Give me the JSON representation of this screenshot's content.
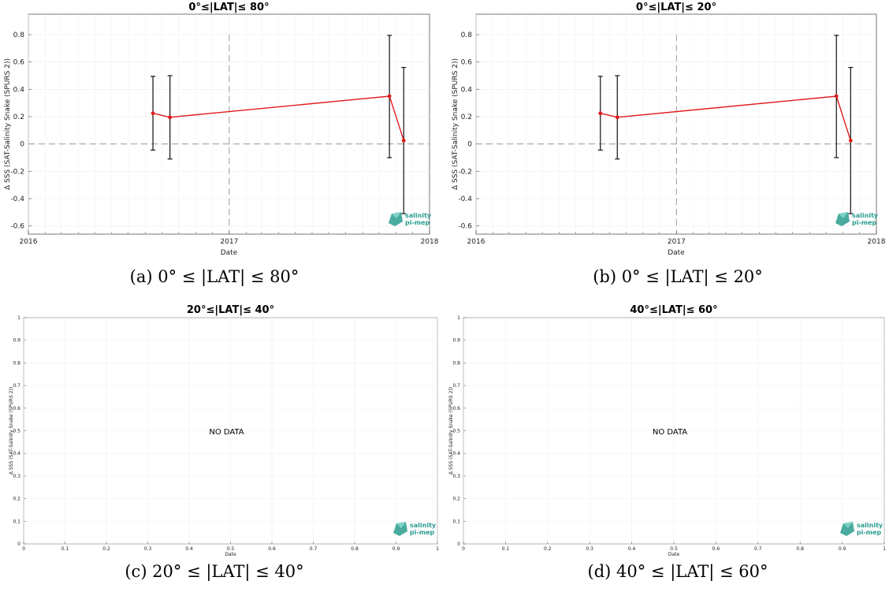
{
  "chart_data": [
    {
      "type": "line",
      "title": "0°≤|LAT|≤ 80°",
      "xlabel": "Date",
      "ylabel": "Δ SSS (SAT-Salinity Snake (SPURS 2))",
      "x_ticks": [
        "2016",
        "2017",
        "2018"
      ],
      "xlim": [
        "2016-01-01",
        "2018-01-01"
      ],
      "ylim": [
        -0.66,
        0.95
      ],
      "y_ticks": [
        -0.6,
        -0.4,
        -0.2,
        0,
        0.2,
        0.4,
        0.6,
        0.8
      ],
      "y_tick_labels": [
        "-0.6",
        "-0.4",
        "-0.2",
        "0",
        "0.2",
        "0.4",
        "0.6",
        "0.8"
      ],
      "vline": "2017-01-01",
      "hline": 0,
      "color": "#e31a1c",
      "series": [
        {
          "points": [
            {
              "x": "2016-08-15",
              "y": 0.225,
              "err_low": -0.045,
              "err_high": 0.495
            },
            {
              "x": "2016-09-15",
              "y": 0.195,
              "err_low": -0.11,
              "err_high": 0.5
            },
            {
              "x": "2017-10-20",
              "y": 0.35,
              "err_low": -0.1,
              "err_high": 0.795
            },
            {
              "x": "2017-11-15",
              "y": 0.025,
              "err_low": -0.51,
              "err_high": 0.56
            }
          ]
        }
      ],
      "caption": "(a) 0° ≤ |LAT| ≤ 80°"
    },
    {
      "type": "line",
      "title": "0°≤|LAT|≤ 20°",
      "xlabel": "Date",
      "ylabel": "Δ SSS (SAT-Salinity Snake (SPURS 2))",
      "x_ticks": [
        "2016",
        "2017",
        "2018"
      ],
      "xlim": [
        "2016-01-01",
        "2018-01-01"
      ],
      "ylim": [
        -0.66,
        0.95
      ],
      "y_ticks": [
        -0.6,
        -0.4,
        -0.2,
        0,
        0.2,
        0.4,
        0.6,
        0.8
      ],
      "y_tick_labels": [
        "-0.6",
        "-0.4",
        "-0.2",
        "0",
        "0.2",
        "0.4",
        "0.6",
        "0.8"
      ],
      "vline": "2017-01-01",
      "hline": 0,
      "color": "#e31a1c",
      "series": [
        {
          "points": [
            {
              "x": "2016-08-15",
              "y": 0.225,
              "err_low": -0.045,
              "err_high": 0.495
            },
            {
              "x": "2016-09-15",
              "y": 0.195,
              "err_low": -0.11,
              "err_high": 0.5
            },
            {
              "x": "2017-10-20",
              "y": 0.35,
              "err_low": -0.1,
              "err_high": 0.795
            },
            {
              "x": "2017-11-15",
              "y": 0.025,
              "err_low": -0.51,
              "err_high": 0.56
            }
          ]
        }
      ],
      "caption": "(b) 0° ≤ |LAT| ≤ 20°"
    },
    {
      "type": "line",
      "title": "20°≤|LAT|≤ 40°",
      "xlabel": "Date",
      "ylabel": "Δ SSS (SAT-Salinity Snake (SPURS 2))",
      "x_ticks": [
        "0",
        "0.1",
        "0.2",
        "0.3",
        "0.4",
        "0.5",
        "0.6",
        "0.7",
        "0.8",
        "0.9",
        "1"
      ],
      "y_ticks": [
        "0",
        "0.1",
        "0.2",
        "0.3",
        "0.4",
        "0.5",
        "0.6",
        "0.7",
        "0.8",
        "0.9",
        "1"
      ],
      "xlim": [
        0,
        1
      ],
      "ylim": [
        0,
        1
      ],
      "annotation": "NO DATA",
      "caption": "(c) 20° ≤ |LAT| ≤ 40°"
    },
    {
      "type": "line",
      "title": "40°≤|LAT|≤ 60°",
      "xlabel": "Date",
      "ylabel": "Δ SSS (SAT-Salinity Snake (SPURS 2))",
      "x_ticks": [
        "0",
        "0.1",
        "0.2",
        "0.3",
        "0.4",
        "0.5",
        "0.6",
        "0.7",
        "0.8",
        "0.9",
        "1"
      ],
      "y_ticks": [
        "0",
        "0.1",
        "0.2",
        "0.3",
        "0.4",
        "0.5",
        "0.6",
        "0.7",
        "0.8",
        "0.9",
        "1"
      ],
      "xlim": [
        0,
        1
      ],
      "ylim": [
        0,
        1
      ],
      "annotation": "NO DATA",
      "caption": "(d) 40° ≤ |LAT| ≤ 60°"
    }
  ],
  "logo": {
    "line1": "salinity",
    "line2": "pi-mep",
    "color": "#2a9d8f"
  }
}
